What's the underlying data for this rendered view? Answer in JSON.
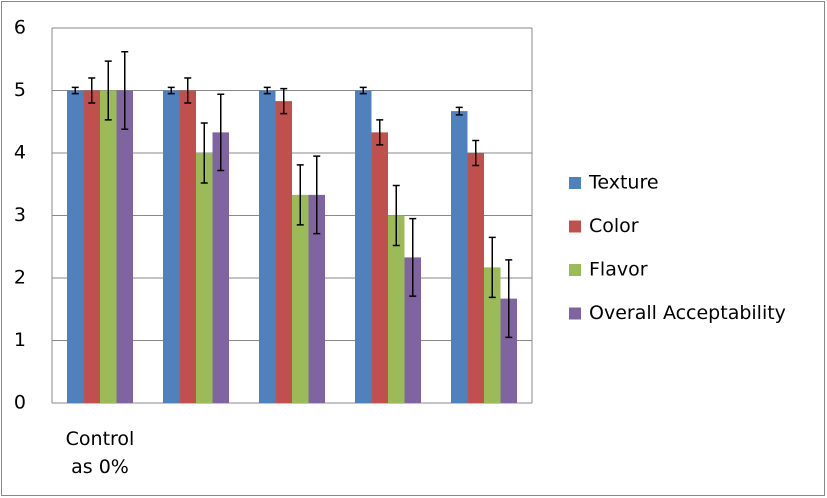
{
  "chart_data": {
    "type": "bar",
    "categories": [
      "Control as 0%",
      null,
      null,
      null,
      null
    ],
    "series": [
      {
        "name": "Texture",
        "color": "#4f81bd",
        "values": [
          5,
          5,
          5,
          5,
          4.67
        ],
        "errors": [
          0.05,
          0.05,
          0.05,
          0.05,
          0.06
        ]
      },
      {
        "name": "Color",
        "color": "#c0504d",
        "values": [
          5,
          5,
          4.83,
          4.33,
          4
        ],
        "errors": [
          0.2,
          0.2,
          0.2,
          0.2,
          0.2
        ]
      },
      {
        "name": "Flavor",
        "color": "#9bbb59",
        "values": [
          5,
          4,
          3.33,
          3,
          2.17
        ],
        "errors": [
          0.47,
          0.48,
          0.48,
          0.48,
          0.48
        ]
      },
      {
        "name": "Overall Acceptability",
        "color": "#8064a2",
        "values": [
          5,
          4.33,
          3.33,
          2.33,
          1.67
        ],
        "errors": [
          0.62,
          0.61,
          0.62,
          0.62,
          0.62
        ]
      }
    ],
    "ylim": [
      0,
      6
    ],
    "yticks": [
      0,
      1,
      2,
      3,
      4,
      5,
      6
    ],
    "grid": true,
    "legend": "right"
  }
}
